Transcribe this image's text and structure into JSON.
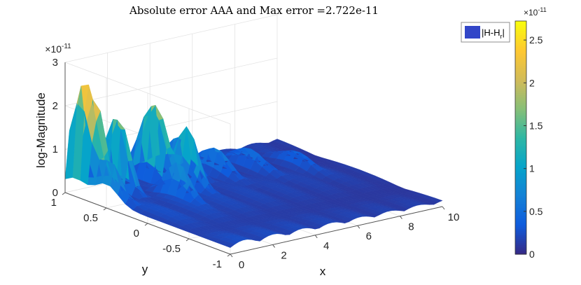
{
  "chart_data": {
    "type": "surface",
    "title": "Absolute error AAA and Max error =2.722e-11",
    "xlabel": "x",
    "ylabel": "y",
    "zlabel": "log-Magnitude",
    "z_exponent_label": "×10",
    "z_exponent": "-11",
    "xlim": [
      0,
      10
    ],
    "ylim": [
      -1,
      1
    ],
    "zlim": [
      0,
      3
    ],
    "x_ticks": [
      "0",
      "2",
      "4",
      "6",
      "8",
      "10"
    ],
    "y_ticks": [
      "-1",
      "-0.5",
      "0",
      "0.5",
      "1"
    ],
    "z_ticks": [
      "0",
      "1",
      "2",
      "3"
    ],
    "grid": true,
    "legend_position": "top-right",
    "legend": [
      {
        "label": "|H-H",
        "subscript": "r",
        "suffix": "|",
        "color": "#3246c8"
      }
    ],
    "colorbar": {
      "range": [
        0,
        2.722
      ],
      "ticks": [
        "0",
        "0.5",
        "1",
        "1.5",
        "2",
        "2.5"
      ],
      "exponent_label": "×10",
      "exponent": "-11",
      "colormap": "parula"
    },
    "max_error": 2.722
  }
}
